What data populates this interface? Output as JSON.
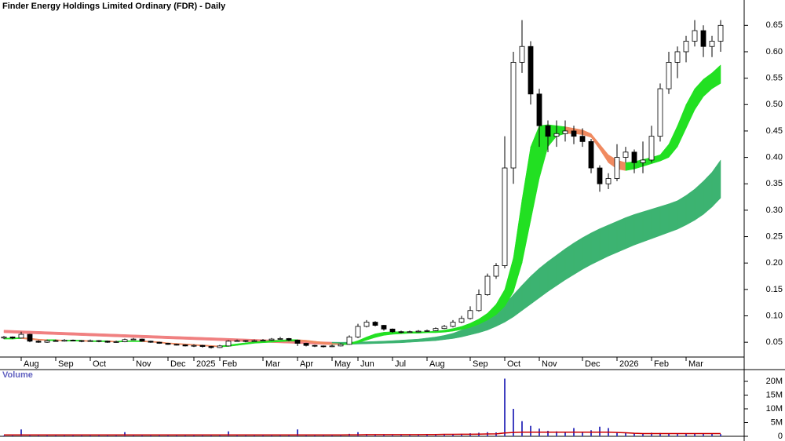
{
  "chart_data": [
    {
      "type": "candlestick",
      "title": "Finder Energy Holdings Limited Ordinary (FDR) - Daily",
      "categories": [
        null,
        null,
        "Aug",
        null,
        null,
        null,
        "Sep",
        null,
        null,
        null,
        "Oct",
        null,
        null,
        null,
        null,
        "Nov",
        null,
        null,
        null,
        "Dec",
        null,
        null,
        "2025",
        null,
        null,
        "Feb",
        null,
        null,
        null,
        null,
        "Mar",
        null,
        null,
        null,
        "Apr",
        null,
        null,
        null,
        "May",
        null,
        null,
        "Jun",
        null,
        null,
        null,
        "Jul",
        null,
        null,
        null,
        "Aug",
        null,
        null,
        null,
        null,
        "Sep",
        null,
        null,
        null,
        "Oct",
        null,
        null,
        null,
        "Nov",
        null,
        null,
        null,
        null,
        "Dec",
        null,
        null,
        null,
        "2026",
        null,
        null,
        null,
        "Feb",
        null,
        null,
        null,
        "Mar",
        null,
        null,
        null,
        null
      ],
      "open": [
        0.058,
        0.06,
        0.058,
        0.065,
        0.052,
        0.05,
        0.053,
        0.052,
        0.054,
        0.053,
        0.052,
        0.053,
        0.052,
        0.05,
        0.051,
        0.055,
        0.056,
        0.052,
        0.05,
        0.048,
        0.046,
        0.045,
        0.043,
        0.044,
        0.042,
        0.04,
        0.043,
        0.052,
        0.053,
        0.052,
        0.053,
        0.054,
        0.056,
        0.057,
        0.054,
        0.048,
        0.044,
        0.043,
        0.042,
        0.043,
        0.046,
        0.06,
        0.08,
        0.088,
        0.082,
        0.075,
        0.07,
        0.069,
        0.07,
        0.071,
        0.072,
        0.076,
        0.08,
        0.088,
        0.095,
        0.11,
        0.14,
        0.175,
        0.195,
        0.38,
        0.58,
        0.61,
        0.52,
        0.46,
        0.44,
        0.445,
        0.45,
        0.44,
        0.43,
        0.38,
        0.35,
        0.36,
        0.4,
        0.41,
        0.39,
        0.395,
        0.44,
        0.53,
        0.58,
        0.6,
        0.62,
        0.64,
        0.61,
        0.62
      ],
      "high": [
        0.062,
        0.061,
        0.07,
        0.066,
        0.054,
        0.055,
        0.055,
        0.056,
        0.055,
        0.054,
        0.055,
        0.054,
        0.053,
        0.053,
        0.057,
        0.058,
        0.057,
        0.053,
        0.051,
        0.049,
        0.047,
        0.046,
        0.046,
        0.045,
        0.043,
        0.045,
        0.054,
        0.055,
        0.054,
        0.055,
        0.056,
        0.058,
        0.06,
        0.058,
        0.055,
        0.049,
        0.045,
        0.044,
        0.045,
        0.048,
        0.063,
        0.085,
        0.092,
        0.09,
        0.083,
        0.076,
        0.072,
        0.072,
        0.073,
        0.074,
        0.078,
        0.083,
        0.092,
        0.1,
        0.118,
        0.15,
        0.18,
        0.2,
        0.44,
        0.6,
        0.66,
        0.62,
        0.53,
        0.47,
        0.47,
        0.47,
        0.46,
        0.455,
        0.435,
        0.385,
        0.37,
        0.425,
        0.42,
        0.415,
        0.43,
        0.46,
        0.54,
        0.6,
        0.61,
        0.63,
        0.66,
        0.65,
        0.63,
        0.66
      ],
      "low": [
        0.056,
        0.056,
        0.057,
        0.05,
        0.049,
        0.049,
        0.051,
        0.051,
        0.052,
        0.05,
        0.051,
        0.05,
        0.049,
        0.049,
        0.05,
        0.054,
        0.051,
        0.049,
        0.047,
        0.045,
        0.044,
        0.042,
        0.041,
        0.04,
        0.038,
        0.039,
        0.042,
        0.051,
        0.05,
        0.051,
        0.052,
        0.053,
        0.055,
        0.052,
        0.043,
        0.042,
        0.041,
        0.04,
        0.041,
        0.042,
        0.045,
        0.058,
        0.078,
        0.08,
        0.072,
        0.068,
        0.067,
        0.068,
        0.069,
        0.07,
        0.071,
        0.075,
        0.078,
        0.086,
        0.093,
        0.108,
        0.138,
        0.17,
        0.19,
        0.35,
        0.56,
        0.5,
        0.42,
        0.41,
        0.42,
        0.43,
        0.425,
        0.42,
        0.37,
        0.335,
        0.34,
        0.355,
        0.39,
        0.37,
        0.37,
        0.39,
        0.43,
        0.52,
        0.55,
        0.58,
        0.61,
        0.59,
        0.59,
        0.6
      ],
      "close": [
        0.06,
        0.058,
        0.065,
        0.052,
        0.05,
        0.053,
        0.052,
        0.054,
        0.053,
        0.052,
        0.053,
        0.052,
        0.05,
        0.051,
        0.055,
        0.056,
        0.052,
        0.05,
        0.048,
        0.046,
        0.045,
        0.043,
        0.044,
        0.042,
        0.04,
        0.043,
        0.052,
        0.053,
        0.052,
        0.053,
        0.054,
        0.056,
        0.057,
        0.054,
        0.048,
        0.044,
        0.043,
        0.042,
        0.043,
        0.046,
        0.06,
        0.08,
        0.088,
        0.082,
        0.075,
        0.07,
        0.069,
        0.07,
        0.071,
        0.072,
        0.076,
        0.08,
        0.088,
        0.095,
        0.11,
        0.14,
        0.175,
        0.195,
        0.38,
        0.58,
        0.61,
        0.52,
        0.46,
        0.44,
        0.445,
        0.45,
        0.44,
        0.43,
        0.38,
        0.35,
        0.36,
        0.4,
        0.41,
        0.39,
        0.395,
        0.44,
        0.53,
        0.58,
        0.6,
        0.62,
        0.64,
        0.61,
        0.62,
        0.65
      ],
      "up_color": "#ffffff",
      "down_color": "#000000",
      "bands": [
        {
          "upper": [
            0.058,
            0.058,
            0.059,
            0.058,
            0.056,
            0.055,
            0.055,
            0.054,
            0.054,
            0.054,
            0.053,
            0.053,
            0.053,
            0.052,
            0.053,
            0.053,
            0.053,
            0.052,
            0.051,
            0.049,
            0.048,
            0.047,
            0.046,
            0.045,
            0.044,
            0.043,
            0.045,
            0.047,
            0.049,
            0.051,
            0.052,
            0.053,
            0.054,
            0.055,
            0.055,
            0.054,
            0.052,
            0.05,
            0.048,
            0.047,
            0.048,
            0.053,
            0.06,
            0.066,
            0.069,
            0.07,
            0.07,
            0.07,
            0.07,
            0.07,
            0.071,
            0.073,
            0.076,
            0.08,
            0.086,
            0.094,
            0.105,
            0.122,
            0.15,
            0.21,
            0.32,
            0.42,
            0.46,
            0.462,
            0.46,
            0.458,
            0.455,
            0.452,
            0.445,
            0.425,
            0.405,
            0.395,
            0.39,
            0.392,
            0.396,
            0.4,
            0.405,
            0.425,
            0.46,
            0.5,
            0.53,
            0.548,
            0.56,
            0.575
          ],
          "lower": [
            0.056,
            0.056,
            0.057,
            0.055,
            0.054,
            0.053,
            0.053,
            0.052,
            0.052,
            0.052,
            0.051,
            0.051,
            0.051,
            0.05,
            0.051,
            0.051,
            0.051,
            0.05,
            0.049,
            0.047,
            0.046,
            0.045,
            0.044,
            0.043,
            0.042,
            0.041,
            0.042,
            0.044,
            0.046,
            0.048,
            0.049,
            0.05,
            0.051,
            0.052,
            0.052,
            0.051,
            0.049,
            0.047,
            0.046,
            0.045,
            0.046,
            0.049,
            0.054,
            0.059,
            0.063,
            0.065,
            0.066,
            0.067,
            0.067,
            0.068,
            0.068,
            0.069,
            0.071,
            0.074,
            0.078,
            0.084,
            0.092,
            0.102,
            0.118,
            0.145,
            0.2,
            0.28,
            0.36,
            0.42,
            0.44,
            0.445,
            0.445,
            0.443,
            0.438,
            0.415,
            0.39,
            0.378,
            0.375,
            0.378,
            0.383,
            0.388,
            0.393,
            0.4,
            0.42,
            0.455,
            0.49,
            0.515,
            0.53,
            0.54
          ],
          "color": "#22e022",
          "down_color": "#f08a60"
        },
        {
          "upper": [
            0.073,
            0.0724,
            0.0718,
            0.0712,
            0.0706,
            0.07,
            0.0694,
            0.0688,
            0.0682,
            0.0676,
            0.067,
            0.0664,
            0.0658,
            0.0652,
            0.0646,
            0.064,
            0.0634,
            0.0628,
            0.0622,
            0.0616,
            0.061,
            0.0604,
            0.0598,
            0.0592,
            0.0586,
            0.058,
            0.0574,
            0.0568,
            0.0562,
            0.0556,
            0.055,
            0.0544,
            0.0538,
            0.0532,
            0.0526,
            0.052,
            0.0514,
            0.0508,
            0.0502,
            0.05,
            0.0502,
            0.0506,
            0.051,
            0.0516,
            0.0522,
            0.053,
            0.054,
            0.055,
            0.056,
            0.058,
            0.06,
            0.063,
            0.067,
            0.073,
            0.08,
            0.088,
            0.097,
            0.108,
            0.122,
            0.14,
            0.158,
            0.175,
            0.19,
            0.203,
            0.215,
            0.227,
            0.238,
            0.248,
            0.257,
            0.265,
            0.272,
            0.279,
            0.286,
            0.292,
            0.297,
            0.302,
            0.307,
            0.312,
            0.318,
            0.328,
            0.34,
            0.355,
            0.372,
            0.395
          ],
          "lower": [
            0.068,
            0.0674,
            0.0668,
            0.0662,
            0.0656,
            0.065,
            0.0644,
            0.0638,
            0.0632,
            0.0626,
            0.062,
            0.0614,
            0.0608,
            0.0602,
            0.0596,
            0.059,
            0.0584,
            0.0578,
            0.0572,
            0.0566,
            0.056,
            0.0554,
            0.0548,
            0.0542,
            0.0536,
            0.053,
            0.0524,
            0.0518,
            0.0512,
            0.0506,
            0.05,
            0.0494,
            0.0488,
            0.0482,
            0.0476,
            0.047,
            0.0464,
            0.0458,
            0.0452,
            0.0455,
            0.046,
            0.0465,
            0.047,
            0.0475,
            0.048,
            0.0485,
            0.049,
            0.05,
            0.051,
            0.052,
            0.053,
            0.055,
            0.057,
            0.06,
            0.064,
            0.068,
            0.073,
            0.08,
            0.088,
            0.098,
            0.11,
            0.122,
            0.134,
            0.146,
            0.157,
            0.168,
            0.178,
            0.188,
            0.197,
            0.205,
            0.213,
            0.22,
            0.227,
            0.234,
            0.24,
            0.246,
            0.252,
            0.258,
            0.264,
            0.272,
            0.281,
            0.292,
            0.306,
            0.323
          ],
          "color": "#3cb371",
          "down_color": "#f08080"
        }
      ],
      "ylim": [
        0.022,
        0.698
      ],
      "yticks": [
        0.05,
        {
          "value": 0.1,
          "label": "0.10"
        },
        0.15,
        {
          "value": 0.2,
          "label": "0.20"
        },
        0.25,
        {
          "value": 0.3,
          "label": "0.30"
        },
        0.35,
        {
          "value": 0.4,
          "label": "0.40"
        },
        0.45,
        {
          "value": 0.5,
          "label": "0.50"
        },
        0.55,
        {
          "value": 0.6,
          "label": "0.60"
        },
        0.65
      ]
    },
    {
      "type": "bar",
      "title": "Volume",
      "series": [
        {
          "kind": "bar",
          "color": "#4040c0",
          "values": [
            300000,
            400000,
            2500000,
            500000,
            300000,
            300000,
            400000,
            300000,
            300000,
            400000,
            300000,
            500000,
            300000,
            400000,
            1500000,
            600000,
            300000,
            400000,
            300000,
            300000,
            400000,
            300000,
            300000,
            500000,
            400000,
            600000,
            1800000,
            700000,
            500000,
            400000,
            500000,
            600000,
            400000,
            700000,
            2500000,
            500000,
            400000,
            300000,
            400000,
            500000,
            900000,
            1500000,
            800000,
            600000,
            500000,
            400000,
            400000,
            400000,
            500000,
            500000,
            600000,
            700000,
            800000,
            900000,
            1100000,
            1300000,
            1500000,
            1400000,
            21000000,
            10000000,
            5500000,
            3800000,
            2800000,
            2000000,
            1800000,
            1600000,
            3000000,
            1500000,
            2200000,
            3500000,
            3000000,
            1500000,
            1200000,
            1000000,
            1100000,
            1300000,
            1200000,
            1000000,
            900000,
            1000000,
            1100000,
            900000,
            1000000,
            800000
          ]
        },
        {
          "kind": "line",
          "color": "#cc0000",
          "values": [
            500000,
            500000,
            500000,
            500000,
            500000,
            500000,
            500000,
            500000,
            500000,
            500000,
            500000,
            500000,
            500000,
            500000,
            500000,
            500000,
            500000,
            500000,
            500000,
            500000,
            500000,
            500000,
            500000,
            500000,
            500000,
            500000,
            500000,
            500000,
            500000,
            500000,
            500000,
            500000,
            500000,
            500000,
            500000,
            500000,
            500000,
            500000,
            500000,
            500000,
            550000,
            550000,
            600000,
            600000,
            600000,
            600000,
            600000,
            600000,
            600000,
            650000,
            650000,
            700000,
            700000,
            750000,
            750000,
            800000,
            850000,
            900000,
            1200000,
            1400000,
            1500000,
            1500000,
            1500000,
            1500000,
            1500000,
            1500000,
            1500000,
            1500000,
            1500000,
            1500000,
            1500000,
            1400000,
            1300000,
            1100000,
            1000000,
            1000000,
            1000000,
            1000000,
            1000000,
            1000000,
            1000000,
            1000000,
            1000000,
            1000000
          ]
        }
      ],
      "ylim": [
        0,
        24000000
      ],
      "yticks": [
        0,
        {
          "value": 5000000,
          "label": "5M"
        },
        {
          "value": 10000000,
          "label": "10M"
        },
        {
          "value": 15000000,
          "label": "15M"
        },
        {
          "value": 20000000,
          "label": "20M"
        }
      ]
    }
  ]
}
